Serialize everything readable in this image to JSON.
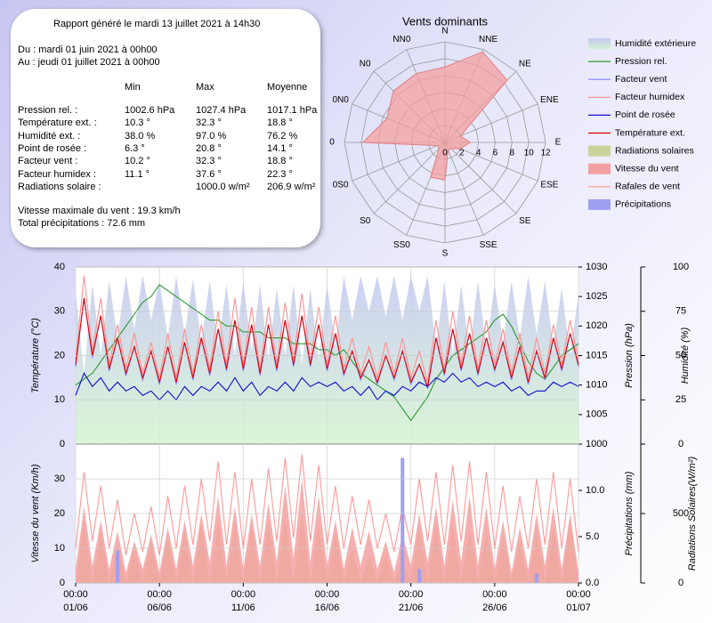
{
  "report": {
    "title": "Rapport généré le mardi 13 juillet 2021 à 14h30",
    "from": "Du : mardi 01 juin 2021 à 00h00",
    "to": "Au : jeudi 01 juillet 2021 à 00h00",
    "columns": [
      "Min",
      "Max",
      "Moyenne"
    ],
    "rows": [
      [
        "Pression rel. :",
        "1002.6 hPa",
        "1027.4 hPa",
        "1017.1 hPa"
      ],
      [
        "Température ext. :",
        "10.3 °",
        "32.3 °",
        "18.8 °"
      ],
      [
        "Humidité ext. :",
        "38.0 %",
        "97.0 %",
        "76.2 %"
      ],
      [
        "Point de rosée :",
        "6.3 °",
        "20.8 °",
        "14.1 °"
      ],
      [
        "Facteur vent :",
        "10.2 °",
        "32.3 °",
        "18.8 °"
      ],
      [
        "Facteur humidex :",
        "11.1 °",
        "37.6 °",
        "22.3 °"
      ],
      [
        "Radiations solaire :",
        null,
        "1000.0 w/m²",
        "206.9 w/m²"
      ]
    ],
    "max_wind": "Vitesse maximale du vent : 19.3 km/h",
    "total_precip": "Total précipitations : 72.6 mm"
  },
  "chart_data": [
    {
      "type": "radar",
      "title": "Vents dominants",
      "categories": [
        "N",
        "NNE",
        "NE",
        "ENE",
        "E",
        "ESE",
        "SE",
        "SSE",
        "S",
        "SS0",
        "S0",
        "0S0",
        "0",
        "0N0",
        "N0",
        "NN0"
      ],
      "values": [
        9,
        11.7,
        10.5,
        2,
        3,
        2,
        1,
        1,
        4.5,
        4.5,
        1,
        1,
        9.8,
        7.5,
        8.7,
        8.9
      ],
      "color": "#f4a0a0",
      "rlim": [
        0,
        12
      ],
      "rticks": [
        0,
        2,
        4,
        6,
        8,
        10,
        12
      ]
    },
    {
      "type": "line",
      "xlim": [
        0,
        30
      ],
      "grid": true,
      "x": [
        0,
        0.5,
        1,
        1.5,
        2,
        2.5,
        3,
        3.5,
        4,
        4.5,
        5,
        5.5,
        6,
        6.5,
        7,
        7.5,
        8,
        8.5,
        9,
        9.5,
        10,
        10.5,
        11,
        11.5,
        12,
        12.5,
        13,
        13.5,
        14,
        14.5,
        15,
        15.5,
        16,
        16.5,
        17,
        17.5,
        18,
        18.5,
        19,
        19.5,
        20,
        20.5,
        21,
        21.5,
        22,
        22.5,
        23,
        23.5,
        24,
        24.5,
        25,
        25.5,
        26,
        26.5,
        27,
        27.5,
        28,
        28.5,
        29,
        29.5,
        30
      ],
      "ylabel": "Température (°C)",
      "ylim": [
        0,
        40
      ],
      "yticks": [
        0,
        10,
        20,
        30,
        40
      ],
      "y2label": "Pression (hPa)",
      "y2lim": [
        1000,
        1030
      ],
      "y2ticks": [
        1000,
        1005,
        1010,
        1015,
        1020,
        1025,
        1030
      ],
      "y3label": "Humidité (%)",
      "y3lim": [
        0,
        100
      ],
      "y3ticks": [
        0,
        25,
        50,
        75,
        100
      ],
      "series": [
        {
          "name": "Humidité extérieure",
          "color": "#c4c8f2",
          "style": "area",
          "axis": "y3",
          "values": [
            85,
            40,
            90,
            50,
            92,
            60,
            95,
            65,
            95,
            70,
            92,
            60,
            95,
            62,
            93,
            58,
            92,
            55,
            90,
            50,
            92,
            52,
            90,
            48,
            88,
            50,
            90,
            45,
            88,
            48,
            90,
            55,
            95,
            70,
            95,
            75,
            95,
            72,
            95,
            70,
            95,
            75,
            95,
            55,
            92,
            50,
            90,
            52,
            92,
            55,
            90,
            58,
            92,
            60,
            95,
            62,
            92,
            55,
            88,
            50,
            85
          ]
        },
        {
          "name": "Pression rel.",
          "color": "#2a9a2a",
          "style": "line",
          "axis": "y2",
          "values": [
            1010,
            1011,
            1012,
            1014,
            1016,
            1018,
            1020,
            1022,
            1024,
            1025,
            1027,
            1026,
            1025,
            1024,
            1023,
            1022,
            1021,
            1021,
            1020,
            1020,
            1019,
            1019,
            1019,
            1018,
            1018,
            1018,
            1017,
            1017,
            1017,
            1016,
            1016,
            1015,
            1016,
            1014,
            1012,
            1011,
            1010,
            1009,
            1008,
            1006,
            1004,
            1006,
            1008,
            1011,
            1013,
            1015,
            1016,
            1017,
            1018,
            1019,
            1021,
            1022,
            1020,
            1017,
            1014,
            1012,
            1011,
            1013,
            1015,
            1016,
            1017
          ]
        },
        {
          "name": "Facteur vent",
          "color": "#8080ff",
          "style": "line",
          "axis": "y",
          "values": [
            17.5,
            33,
            19.5,
            29,
            16.5,
            24,
            15.5,
            22,
            14.5,
            21,
            13.5,
            22,
            13.5,
            23,
            14.5,
            24,
            15.5,
            26,
            16.5,
            28,
            16.5,
            27,
            15.5,
            27,
            16.5,
            28,
            17.5,
            29,
            17.5,
            27,
            16.5,
            25,
            15.5,
            21,
            14.5,
            19,
            13.5,
            20,
            14.5,
            21,
            13.5,
            18,
            12.5,
            24,
            15.5,
            26,
            16.5,
            25,
            15.5,
            24,
            16.5,
            23,
            14.5,
            22,
            13.5,
            21,
            14.5,
            24,
            16.5,
            25,
            17.5
          ]
        },
        {
          "name": "Facteur humidex",
          "color": "#ff9090",
          "style": "line",
          "axis": "y",
          "values": [
            19,
            38,
            21,
            33,
            18,
            27,
            17,
            25,
            16,
            23,
            15,
            25,
            15,
            26,
            16,
            27,
            17,
            30,
            18,
            33,
            18,
            31,
            17,
            31,
            18,
            32,
            19,
            34,
            19,
            31,
            18,
            29,
            17,
            24,
            16,
            22,
            15,
            23,
            16,
            24,
            15,
            21,
            14,
            28,
            17,
            30,
            18,
            29,
            17,
            28,
            18,
            26,
            16,
            25,
            15,
            24,
            16,
            27,
            18,
            28,
            19
          ]
        },
        {
          "name": "Point de rosée",
          "color": "#1010d0",
          "style": "line",
          "axis": "y",
          "values": [
            11,
            16,
            13,
            15,
            12,
            14,
            12,
            13,
            11,
            12,
            10,
            12,
            10,
            13,
            11,
            13,
            12,
            14,
            12,
            15,
            12,
            14,
            11,
            13,
            12,
            14,
            12,
            15,
            13,
            14,
            13,
            14,
            12,
            13,
            11,
            13,
            10,
            12,
            11,
            13,
            12,
            14,
            13,
            15,
            14,
            16,
            14,
            15,
            13,
            14,
            13,
            14,
            12,
            13,
            11,
            12,
            12,
            14,
            13,
            14,
            13
          ]
        },
        {
          "name": "Température ext.",
          "color": "#e00000",
          "style": "line",
          "axis": "y",
          "values": [
            18,
            33,
            20,
            29,
            17,
            24,
            16,
            22,
            15,
            21,
            14,
            22,
            14,
            23,
            15,
            24,
            16,
            26,
            17,
            28,
            17,
            27,
            16,
            27,
            17,
            28,
            18,
            29,
            18,
            27,
            17,
            25,
            16,
            21,
            15,
            19,
            14,
            20,
            15,
            21,
            14,
            18,
            13,
            24,
            16,
            26,
            17,
            25,
            16,
            24,
            17,
            23,
            15,
            22,
            14,
            21,
            15,
            24,
            17,
            25,
            18
          ]
        }
      ]
    },
    {
      "type": "line",
      "xlim": [
        0,
        30
      ],
      "grid": true,
      "x": [
        0,
        0.5,
        1,
        1.5,
        2,
        2.5,
        3,
        3.5,
        4,
        4.5,
        5,
        5.5,
        6,
        6.5,
        7,
        7.5,
        8,
        8.5,
        9,
        9.5,
        10,
        10.5,
        11,
        11.5,
        12,
        12.5,
        13,
        13.5,
        14,
        14.5,
        15,
        15.5,
        16,
        16.5,
        17,
        17.5,
        18,
        18.5,
        19,
        19.5,
        20,
        20.5,
        21,
        21.5,
        22,
        22.5,
        23,
        23.5,
        24,
        24.5,
        25,
        25.5,
        26,
        26.5,
        27,
        27.5,
        28,
        28.5,
        29,
        29.5,
        30
      ],
      "xticks": [
        {
          "value": 0,
          "label": "00:00\n01/06"
        },
        {
          "value": 5,
          "label": "00:00\n06/06"
        },
        {
          "value": 10,
          "label": "00:00\n11/06"
        },
        {
          "value": 15,
          "label": "00:00\n16/06"
        },
        {
          "value": 20,
          "label": "00:00\n21/06"
        },
        {
          "value": 25,
          "label": "00:00\n26/06"
        },
        {
          "value": 30,
          "label": "00:00\n01/07"
        }
      ],
      "ylabel": "Vitesse du vent (Km/h)",
      "ylim": [
        0,
        40
      ],
      "yticks": [
        0,
        10,
        20,
        30
      ],
      "y2label": "Précipitations (mm)",
      "y2lim": [
        0,
        15
      ],
      "y2ticks": [
        {
          "value": 0,
          "label": "0.0"
        },
        {
          "value": 5,
          "label": "5.0"
        },
        {
          "value": 10,
          "label": "10.0"
        }
      ],
      "y3label": "Radiations Solaires(W/m²)",
      "y3lim": [
        0,
        1000
      ],
      "y3ticks": [
        0,
        500
      ],
      "series": [
        {
          "name": "Radiations solaires",
          "color": "#c9d49a",
          "style": "area",
          "axis": "y3",
          "values": [
            0,
            450,
            0,
            380,
            0,
            280,
            0,
            250,
            0,
            320,
            0,
            350,
            0,
            380,
            0,
            420,
            0,
            450,
            0,
            430,
            0,
            420,
            0,
            450,
            0,
            480,
            0,
            500,
            0,
            420,
            0,
            380,
            0,
            250,
            0,
            200,
            0,
            220,
            0,
            180,
            0,
            420,
            0,
            450,
            0,
            420,
            0,
            400,
            0,
            380,
            0,
            350,
            0,
            320,
            0,
            400,
            0,
            420,
            0,
            450,
            0
          ]
        },
        {
          "name": "Vitesse du vent",
          "color": "#f4a0a0",
          "style": "area",
          "axis": "y",
          "values": [
            4,
            22,
            5,
            18,
            4,
            15,
            3,
            12,
            4,
            14,
            3,
            16,
            4,
            18,
            5,
            20,
            6,
            25,
            5,
            22,
            4,
            20,
            5,
            23,
            6,
            28,
            7,
            30,
            6,
            25,
            5,
            18,
            4,
            16,
            5,
            15,
            4,
            12,
            3,
            14,
            5,
            20,
            6,
            22,
            5,
            24,
            6,
            25,
            5,
            22,
            4,
            18,
            3,
            16,
            4,
            20,
            5,
            22,
            4,
            20,
            3
          ]
        },
        {
          "name": "Rafales de vent",
          "color": "#ff9898",
          "style": "line",
          "axis": "y",
          "values": [
            10,
            32,
            12,
            28,
            10,
            24,
            8,
            20,
            9,
            22,
            8,
            25,
            10,
            28,
            11,
            30,
            12,
            35,
            11,
            32,
            10,
            30,
            11,
            33,
            12,
            36,
            13,
            37,
            12,
            34,
            11,
            28,
            10,
            25,
            11,
            24,
            10,
            20,
            9,
            22,
            11,
            30,
            12,
            32,
            11,
            34,
            12,
            35,
            11,
            32,
            10,
            28,
            9,
            25,
            10,
            30,
            11,
            32,
            10,
            30,
            9
          ]
        },
        {
          "name": "Précipitations",
          "color": "#9f9ff2",
          "style": "bar",
          "axis": "y2",
          "values": [
            0,
            0,
            0,
            0,
            0,
            3.5,
            0,
            0,
            0,
            0,
            0,
            0,
            0,
            0,
            0,
            0,
            0,
            0,
            0,
            0,
            0,
            0,
            0,
            0,
            0,
            0,
            0,
            0,
            0,
            0,
            0,
            0,
            0,
            0,
            0,
            0,
            0,
            0,
            0,
            13.5,
            0,
            1.5,
            0,
            0,
            0,
            0,
            0,
            0,
            0,
            0,
            0,
            0,
            0,
            0,
            0,
            1.0,
            0,
            0,
            0,
            0,
            0
          ]
        }
      ]
    }
  ]
}
